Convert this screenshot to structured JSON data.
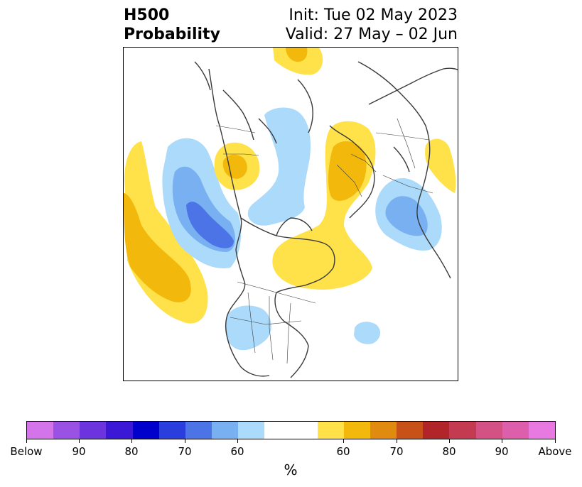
{
  "title": {
    "line1": "H500",
    "line2": "Probability",
    "init": "Init: Tue 02 May 2023",
    "valid": "Valid: 27 May – 02 Jun"
  },
  "colorbar": {
    "units": "%",
    "colors": [
      "#d374ea",
      "#9a52e4",
      "#6c34dd",
      "#3b17d6",
      "#0000cc",
      "#2a3ddd",
      "#4d74e6",
      "#78b0f2",
      "#abdafa",
      "#ffffff",
      "#ffe14a",
      "#f3b80c",
      "#e08a10",
      "#c85118",
      "#b0242a",
      "#c43a51",
      "#d35185",
      "#dd5fab",
      "#e879e0"
    ],
    "tick_labels": [
      "Below",
      "90",
      "80",
      "70",
      "60",
      "60",
      "70",
      "80",
      "90",
      "Above"
    ]
  },
  "map_colors": {
    "blue_light": "#abdafa",
    "blue_mid": "#78b0f2",
    "blue_dark": "#4d74e6",
    "yellow": "#ffe14a",
    "gold": "#f3b80c",
    "coast": "#3a3a3a"
  }
}
